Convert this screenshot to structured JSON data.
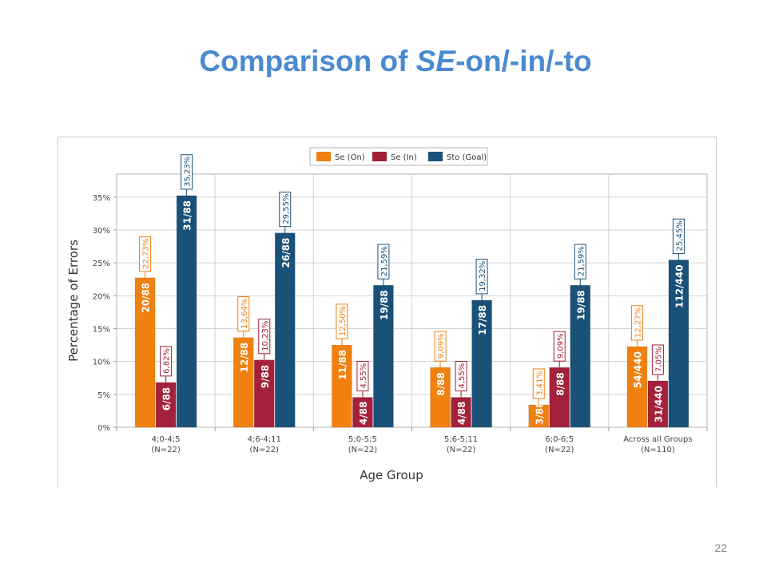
{
  "slide": {
    "title_prefix": "Comparison of ",
    "title_italic": "SE",
    "title_suffix": "-on/-in/-to",
    "page_number": "22"
  },
  "chart_data": {
    "type": "bar",
    "xlabel": "Age Group",
    "ylabel": "Percentage of Errors",
    "ylim": [
      0,
      40
    ],
    "yticks": [
      "0%",
      "5%",
      "10%",
      "15%",
      "20%",
      "25%",
      "30%",
      "35%"
    ],
    "grid": true,
    "legend_position": "top-center",
    "categories": [
      [
        "4;0-4;5",
        "(N=22)"
      ],
      [
        "4;6-4;11",
        "(N=22)"
      ],
      [
        "5;0-5;5",
        "(N=22)"
      ],
      [
        "5;6-5;11",
        "(N=22)"
      ],
      [
        "6;0-6;5",
        "(N=22)"
      ],
      [
        "Across all Groups",
        "(N=110)"
      ]
    ],
    "series": [
      {
        "name": "Se (On)",
        "color": "#f0800f",
        "values": [
          22.73,
          13.64,
          12.5,
          9.09,
          3.41,
          12.27
        ],
        "value_labels": [
          "22,73%",
          "13,64%",
          "12,50%",
          "9,09%",
          "3,41%",
          "12,27%"
        ],
        "count_labels": [
          "20/88",
          "12/88",
          "11/88",
          "8/88",
          "3/88",
          "54/440"
        ]
      },
      {
        "name": "Se (In)",
        "color": "#a3213a",
        "values": [
          6.82,
          10.23,
          4.55,
          4.55,
          9.09,
          7.05
        ],
        "value_labels": [
          "6,82%",
          "10,23%",
          "4,55%",
          "4,55%",
          "9,09%",
          "7,05%"
        ],
        "count_labels": [
          "6/88",
          "9/88",
          "4/88",
          "4/88",
          "8/88",
          "31/440"
        ]
      },
      {
        "name": "Sto (Goal)",
        "color": "#1a5178",
        "values": [
          35.23,
          29.55,
          21.59,
          19.32,
          21.59,
          25.45
        ],
        "value_labels": [
          "35,23%",
          "29,55%",
          "21,59%",
          "19,32%",
          "21,59%",
          "25,45%"
        ],
        "count_labels": [
          "31/88",
          "26/88",
          "19/88",
          "17/88",
          "19/88",
          "112/440"
        ]
      }
    ]
  }
}
